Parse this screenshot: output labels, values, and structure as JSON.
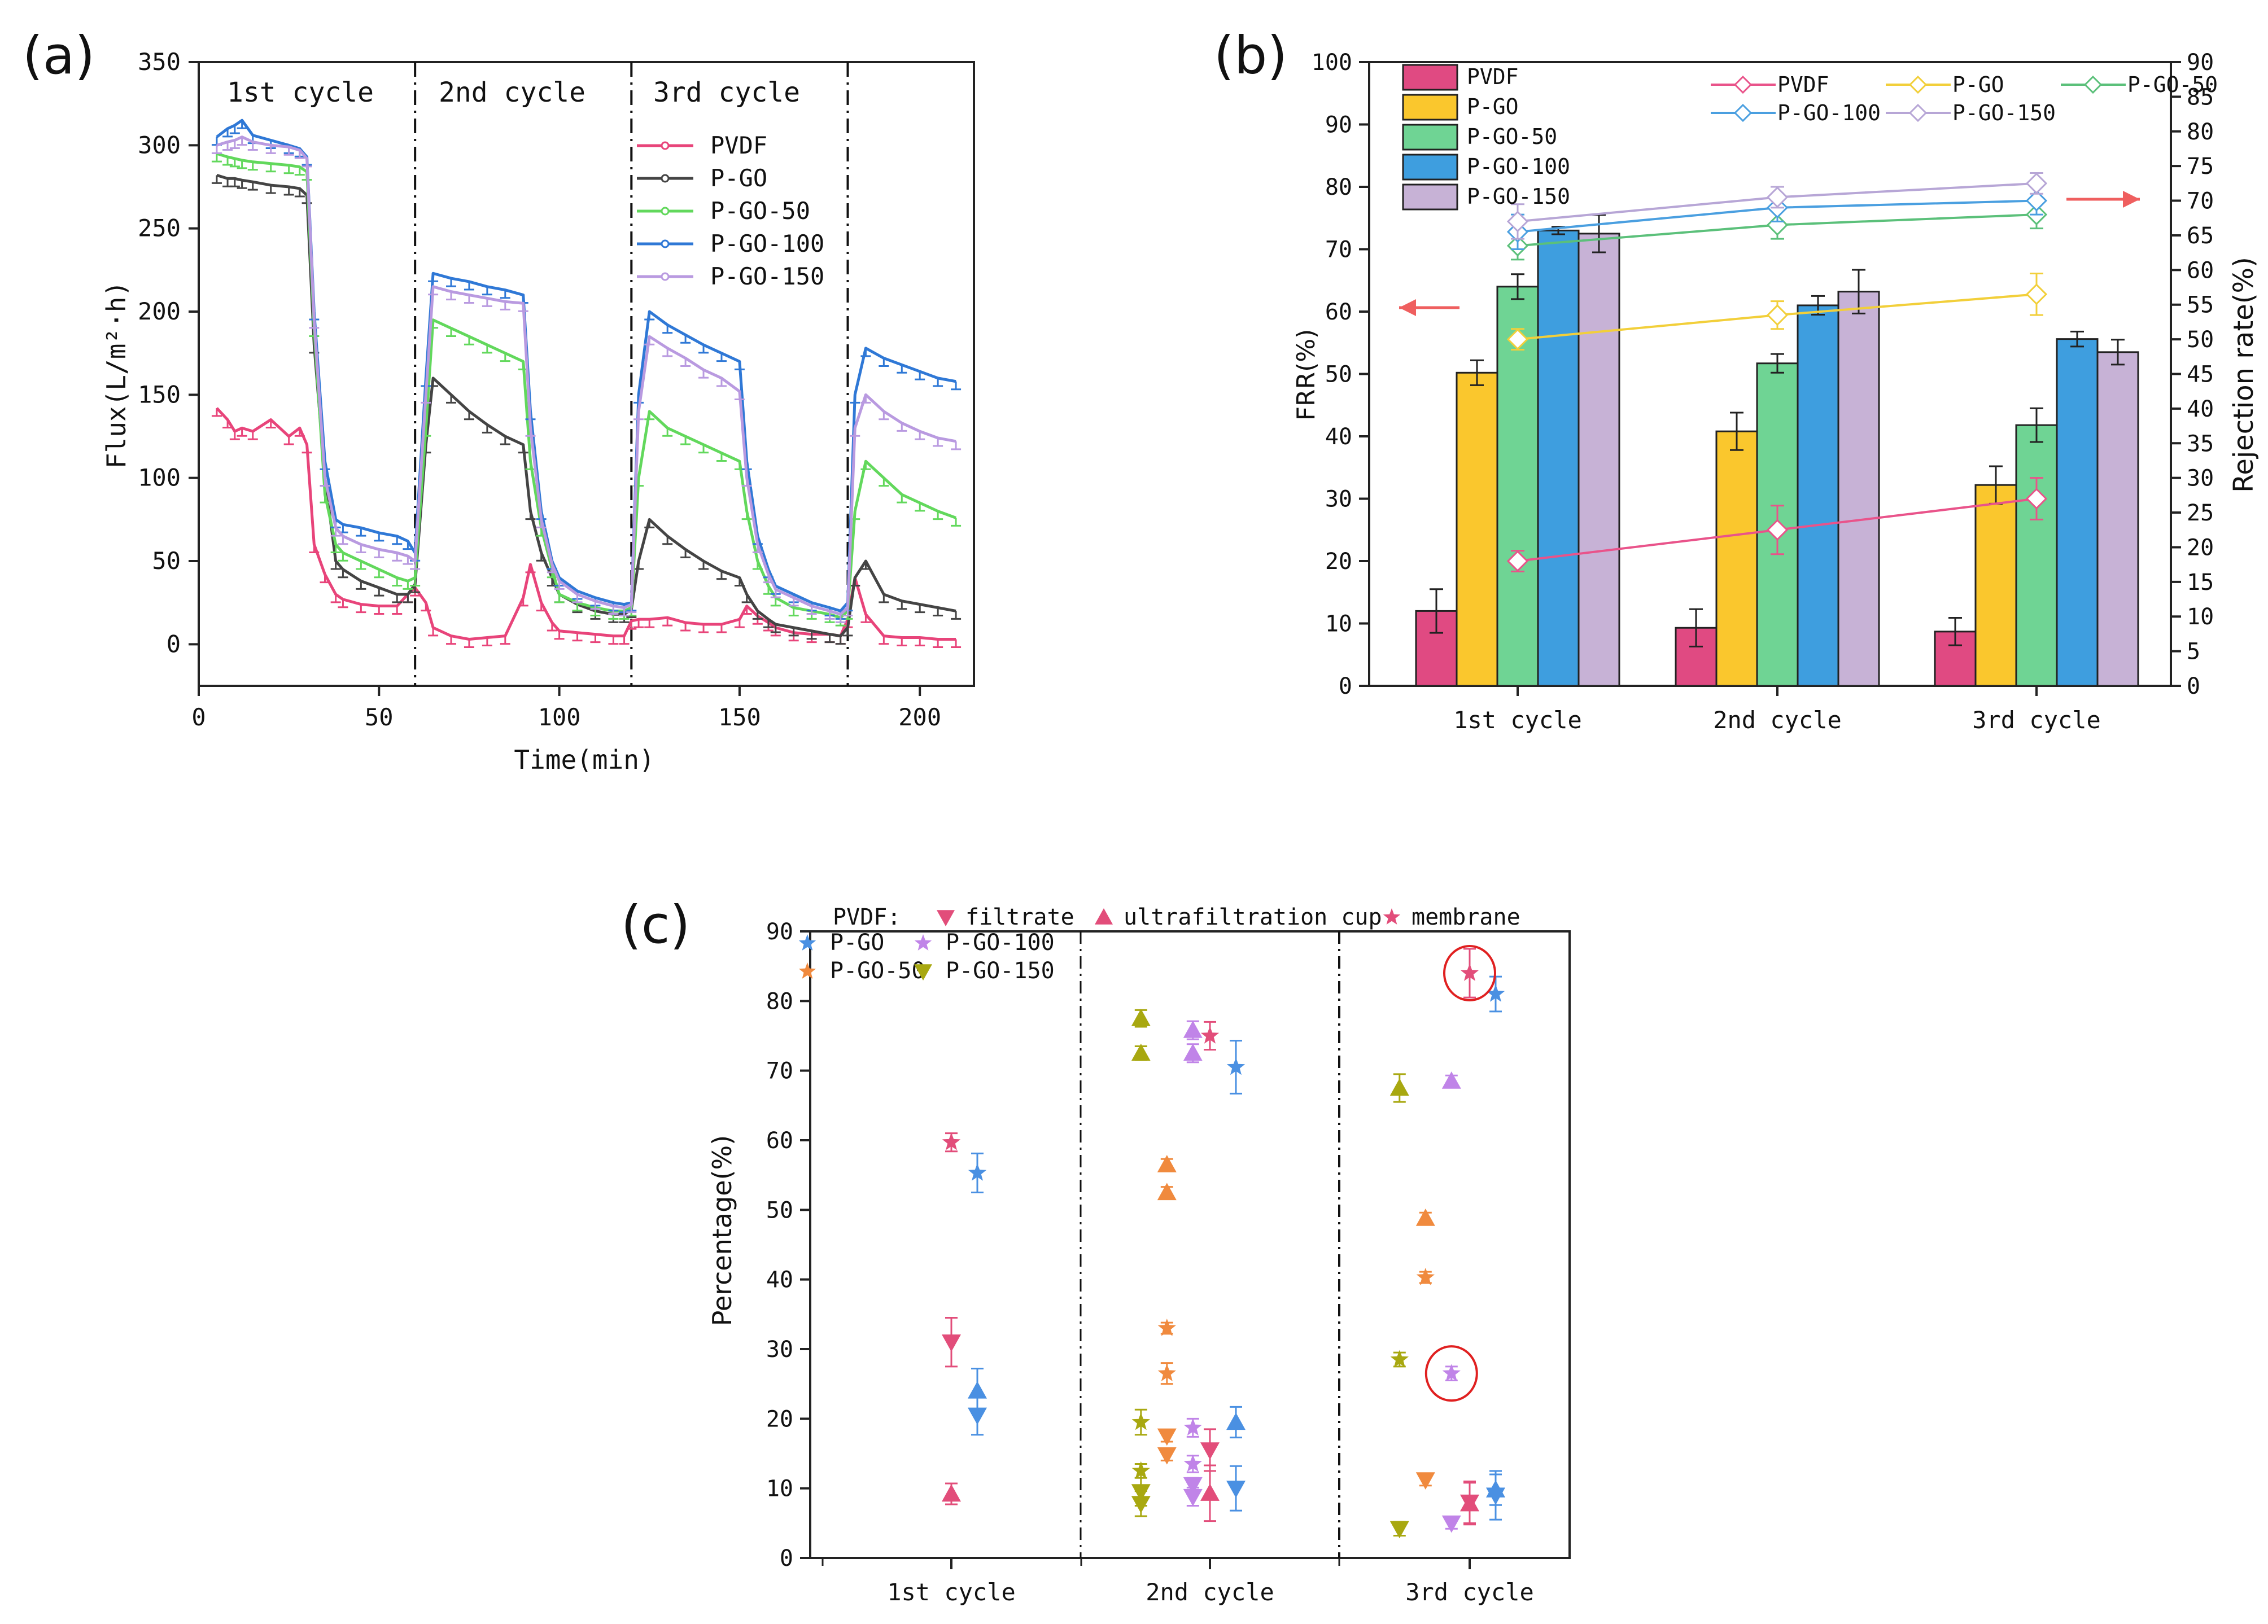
{
  "figure": {
    "panel_labels": [
      "(a)",
      "(b)",
      "(c)"
    ]
  },
  "colors": {
    "PVDF": "#e8447a",
    "P-GO": "#444444",
    "P-GO-50": "#62d85c",
    "P-GO-100": "#2f78d6",
    "P-GO-150": "#b99ae0",
    "bar_PVDF": "#e04a82",
    "bar_P-GO": "#fac72d",
    "bar_P-GO-50": "#6fd494",
    "bar_P-GO-100": "#3e9edf",
    "bar_P-GO-150": "#c7b2d6",
    "rej_PVDF": "#e9538a",
    "rej_P-GO": "#f2cf3a",
    "rej_P-GO-50": "#5bc07a",
    "rej_P-GO-100": "#4a9fe0",
    "rej_P-GO-150": "#b7a6d6",
    "c_P-GO": "#4a90e2",
    "c_P-GO-50": "#f08a3e",
    "c_P-GO-100": "#c084e8",
    "c_P-GO-150": "#a8a810",
    "c_PVDF": "#e24d7a",
    "circle": "#e02020",
    "arrow": "#ef5f5f"
  },
  "chart_data": [
    {
      "panel": "(a)",
      "type": "line",
      "xlabel": "Time(min)",
      "ylabel": "Flux(L/m²·h)",
      "xlim": [
        0,
        215
      ],
      "ylim": [
        -25,
        350
      ],
      "xticks": [
        0,
        50,
        100,
        150,
        200
      ],
      "yticks": [
        0,
        50,
        100,
        150,
        200,
        250,
        300,
        350
      ],
      "cycle_lines": [
        60,
        120,
        180
      ],
      "cycle_labels": [
        "1st cycle",
        "2nd cycle",
        "3rd cycle"
      ],
      "x": [
        5,
        8,
        10,
        12,
        15,
        20,
        25,
        28,
        30,
        32,
        35,
        38,
        40,
        45,
        50,
        55,
        58,
        60,
        63,
        65,
        70,
        75,
        80,
        85,
        90,
        92,
        95,
        98,
        100,
        105,
        110,
        115,
        118,
        120,
        122,
        125,
        130,
        135,
        140,
        145,
        150,
        152,
        155,
        158,
        160,
        165,
        170,
        175,
        178,
        180,
        182,
        185,
        190,
        195,
        200,
        205,
        210
      ],
      "series": [
        {
          "name": "PVDF",
          "values": [
            142,
            135,
            128,
            130,
            128,
            135,
            125,
            130,
            120,
            60,
            42,
            30,
            27,
            24,
            23,
            23,
            30,
            34,
            25,
            10,
            5,
            3,
            4,
            5,
            28,
            48,
            25,
            13,
            8,
            7,
            6,
            5,
            5,
            14,
            15,
            15,
            16,
            13,
            12,
            12,
            15,
            23,
            17,
            13,
            10,
            7,
            6,
            6,
            5,
            15,
            40,
            18,
            5,
            4,
            4,
            3,
            3
          ]
        },
        {
          "name": "P-GO",
          "values": [
            282,
            280,
            280,
            279,
            278,
            276,
            275,
            274,
            270,
            180,
            100,
            50,
            45,
            38,
            34,
            30,
            30,
            36,
            120,
            160,
            150,
            140,
            132,
            125,
            120,
            80,
            55,
            40,
            30,
            24,
            20,
            18,
            18,
            21,
            50,
            75,
            65,
            57,
            50,
            44,
            40,
            30,
            20,
            15,
            12,
            10,
            8,
            6,
            5,
            10,
            40,
            50,
            30,
            26,
            24,
            22,
            20
          ]
        },
        {
          "name": "P-GO-50",
          "values": [
            295,
            293,
            292,
            291,
            290,
            289,
            288,
            287,
            284,
            190,
            90,
            60,
            55,
            50,
            45,
            40,
            38,
            40,
            130,
            195,
            190,
            185,
            180,
            175,
            170,
            110,
            70,
            45,
            30,
            25,
            22,
            20,
            20,
            22,
            100,
            140,
            130,
            125,
            120,
            115,
            110,
            80,
            50,
            35,
            28,
            22,
            20,
            18,
            16,
            20,
            80,
            110,
            100,
            90,
            85,
            80,
            76
          ]
        },
        {
          "name": "P-GO-100",
          "values": [
            305,
            310,
            312,
            315,
            306,
            303,
            300,
            298,
            293,
            200,
            110,
            75,
            72,
            70,
            67,
            65,
            62,
            55,
            160,
            223,
            220,
            218,
            215,
            213,
            210,
            140,
            80,
            50,
            40,
            32,
            28,
            25,
            24,
            25,
            150,
            200,
            192,
            186,
            180,
            175,
            170,
            110,
            65,
            45,
            35,
            30,
            25,
            22,
            20,
            25,
            150,
            178,
            172,
            168,
            164,
            160,
            158
          ]
        },
        {
          "name": "P-GO-150",
          "values": [
            300,
            302,
            303,
            305,
            302,
            300,
            299,
            297,
            292,
            195,
            100,
            70,
            65,
            60,
            57,
            55,
            53,
            50,
            150,
            215,
            212,
            210,
            208,
            206,
            205,
            130,
            75,
            48,
            38,
            30,
            26,
            23,
            22,
            24,
            140,
            185,
            178,
            172,
            165,
            160,
            152,
            100,
            60,
            42,
            33,
            28,
            23,
            20,
            18,
            22,
            130,
            150,
            140,
            133,
            128,
            124,
            122
          ]
        }
      ],
      "legend": [
        "PVDF",
        "P-GO",
        "P-GO-50",
        "P-GO-100",
        "P-GO-150"
      ]
    },
    {
      "panel": "(b)",
      "type": "bar",
      "categories": [
        "1st cycle",
        "2nd cycle",
        "3rd cycle"
      ],
      "ylabel": "FRR(%)",
      "y2label": "Rejection rate(%)",
      "ylim": [
        0,
        100
      ],
      "y2lim": [
        0,
        90
      ],
      "yticks": [
        0,
        10,
        20,
        30,
        40,
        50,
        60,
        70,
        80,
        90,
        100
      ],
      "y2ticks": [
        0,
        5,
        10,
        15,
        20,
        25,
        30,
        35,
        40,
        45,
        50,
        55,
        60,
        65,
        70,
        75,
        80,
        85,
        90
      ],
      "series": [
        {
          "name": "PVDF",
          "values": [
            12,
            9.3,
            8.7
          ],
          "errors": [
            3.5,
            3,
            2.2
          ]
        },
        {
          "name": "P-GO",
          "values": [
            50.2,
            40.8,
            32.2
          ],
          "errors": [
            2,
            3,
            3
          ]
        },
        {
          "name": "P-GO-50",
          "values": [
            64,
            51.7,
            41.8
          ],
          "errors": [
            2,
            1.5,
            2.7
          ]
        },
        {
          "name": "P-GO-100",
          "values": [
            73,
            61,
            55.6
          ],
          "errors": [
            0.6,
            1.5,
            1.2
          ]
        },
        {
          "name": "P-GO-150",
          "values": [
            72.5,
            63.2,
            53.5
          ],
          "errors": [
            3,
            3.5,
            2
          ]
        }
      ],
      "rejection_series": [
        {
          "name": "PVDF",
          "values": [
            18,
            22.5,
            27
          ],
          "errors": [
            1.5,
            3.5,
            3
          ]
        },
        {
          "name": "P-GO",
          "values": [
            50,
            53.5,
            56.5
          ],
          "errors": [
            1.5,
            2,
            3
          ]
        },
        {
          "name": "P-GO-50",
          "values": [
            63.5,
            66.5,
            68
          ],
          "errors": [
            2,
            2,
            2
          ]
        },
        {
          "name": "P-GO-100",
          "values": [
            65.5,
            69,
            70
          ],
          "errors": [
            2.5,
            2,
            2
          ]
        },
        {
          "name": "P-GO-150",
          "values": [
            67,
            70.5,
            72.5
          ],
          "errors": [
            2.5,
            1.5,
            1.5
          ]
        }
      ],
      "bar_legend": [
        "PVDF",
        "P-GO",
        "P-GO-50",
        "P-GO-100",
        "P-GO-150"
      ],
      "line_legend": [
        "PVDF",
        "P-GO",
        "P-GO-50",
        "P-GO-100",
        "P-GO-150"
      ]
    },
    {
      "panel": "(c)",
      "type": "scatter",
      "ylabel": "Percentage(%)",
      "categories": [
        "1st cycle",
        "2nd cycle",
        "3rd cycle"
      ],
      "ylim": [
        0,
        90
      ],
      "yticks": [
        0,
        10,
        20,
        30,
        40,
        50,
        60,
        70,
        80,
        90
      ],
      "legend_title": "PVDF:",
      "legend_markers": [
        "filtrate",
        "ultrafiltration cup",
        "membrane"
      ],
      "legend_series": [
        "P-GO",
        "P-GO-100",
        "P-GO-50",
        "P-GO-150"
      ],
      "points": [
        {
          "series": "P-GO-150",
          "marker": "ultrafiltration cup",
          "x": 0.73,
          "y": 77.5,
          "err": 1.2
        },
        {
          "series": "P-GO-150",
          "marker": "membrane",
          "x": 0.73,
          "y": 12.5,
          "err": 1
        },
        {
          "series": "P-GO-150",
          "marker": "filtrate",
          "x": 0.73,
          "y": 9.5,
          "err": 2
        },
        {
          "series": "P-GO-50",
          "marker": "ultrafiltration cup",
          "x": 0.83,
          "y": 56.5,
          "err": 0.8
        },
        {
          "series": "P-GO-50",
          "marker": "membrane",
          "x": 0.83,
          "y": 26.5,
          "err": 1.5
        },
        {
          "series": "P-GO-50",
          "marker": "filtrate",
          "x": 0.83,
          "y": 17.5,
          "err": 0.8
        },
        {
          "series": "P-GO-100",
          "marker": "ultrafiltration cup",
          "x": 0.93,
          "y": 75.8,
          "err": 1.3
        },
        {
          "series": "P-GO-100",
          "marker": "membrane",
          "x": 0.93,
          "y": 13.5,
          "err": 1.2
        },
        {
          "series": "P-GO-100",
          "marker": "filtrate",
          "x": 0.93,
          "y": 10.5,
          "err": 1
        },
        {
          "series": "PVDF",
          "marker": "membrane",
          "x": 1.0,
          "y": 59.7,
          "err": 1.3
        },
        {
          "series": "PVDF",
          "marker": "filtrate",
          "x": 1.0,
          "y": 31,
          "err": 3.5
        },
        {
          "series": "PVDF",
          "marker": "ultrafiltration cup",
          "x": 1.0,
          "y": 9.2,
          "err": 1.5
        },
        {
          "series": "P-GO",
          "marker": "membrane",
          "x": 1.1,
          "y": 55.3,
          "err": 2.8
        },
        {
          "series": "P-GO",
          "marker": "ultrafiltration cup",
          "x": 1.1,
          "y": 24,
          "err": 3.2
        },
        {
          "series": "P-GO",
          "marker": "filtrate",
          "x": 1.1,
          "y": 20.5,
          "err": 2.8
        },
        {
          "series": "P-GO-150",
          "marker": "ultrafiltration cup",
          "x": 1.73,
          "y": 72.5,
          "err": 1
        },
        {
          "series": "P-GO-150",
          "marker": "membrane",
          "x": 1.73,
          "y": 19.5,
          "err": 1.8
        },
        {
          "series": "P-GO-150",
          "marker": "filtrate",
          "x": 1.73,
          "y": 7.8,
          "err": 1.8
        },
        {
          "series": "P-GO-50",
          "marker": "ultrafiltration cup",
          "x": 1.83,
          "y": 52.5,
          "err": 0.8
        },
        {
          "series": "P-GO-50",
          "marker": "membrane",
          "x": 1.83,
          "y": 33,
          "err": 0.8
        },
        {
          "series": "P-GO-50",
          "marker": "filtrate",
          "x": 1.83,
          "y": 14.8,
          "err": 0.8
        },
        {
          "series": "P-GO-100",
          "marker": "ultrafiltration cup",
          "x": 1.93,
          "y": 72.5,
          "err": 1.3
        },
        {
          "series": "P-GO-100",
          "marker": "membrane",
          "x": 1.93,
          "y": 18.7,
          "err": 1.3
        },
        {
          "series": "P-GO-100",
          "marker": "filtrate",
          "x": 1.93,
          "y": 8.8,
          "err": 1.3
        },
        {
          "series": "PVDF",
          "marker": "membrane",
          "x": 2.0,
          "y": 75,
          "err": 2
        },
        {
          "series": "PVDF",
          "marker": "filtrate",
          "x": 2.0,
          "y": 15.5,
          "err": 3
        },
        {
          "series": "PVDF",
          "marker": "ultrafiltration cup",
          "x": 2.0,
          "y": 9.3,
          "err": 4
        },
        {
          "series": "P-GO",
          "marker": "membrane",
          "x": 2.1,
          "y": 70.5,
          "err": 3.8
        },
        {
          "series": "P-GO",
          "marker": "ultrafiltration cup",
          "x": 2.1,
          "y": 19.5,
          "err": 2.2
        },
        {
          "series": "P-GO",
          "marker": "filtrate",
          "x": 2.1,
          "y": 10,
          "err": 3.2
        },
        {
          "series": "P-GO-150",
          "marker": "ultrafiltration cup",
          "x": 2.73,
          "y": 67.5,
          "err": 2
        },
        {
          "series": "P-GO-150",
          "marker": "membrane",
          "x": 2.73,
          "y": 28.5,
          "err": 1
        },
        {
          "series": "P-GO-150",
          "marker": "filtrate",
          "x": 2.73,
          "y": 4.2,
          "err": 1
        },
        {
          "series": "P-GO-50",
          "marker": "ultrafiltration cup",
          "x": 2.83,
          "y": 48.8,
          "err": 0.8
        },
        {
          "series": "P-GO-50",
          "marker": "membrane",
          "x": 2.83,
          "y": 40.3,
          "err": 0.8
        },
        {
          "series": "P-GO-50",
          "marker": "filtrate",
          "x": 2.83,
          "y": 11.2,
          "err": 0.8
        },
        {
          "series": "P-GO-100",
          "marker": "ultrafiltration cup",
          "x": 2.93,
          "y": 68.5,
          "err": 0.8
        },
        {
          "series": "P-GO-100",
          "marker": "membrane",
          "x": 2.93,
          "y": 26.5,
          "err": 1
        },
        {
          "series": "P-GO-100",
          "marker": "filtrate",
          "x": 2.93,
          "y": 5,
          "err": 0.8
        },
        {
          "series": "PVDF",
          "marker": "membrane",
          "x": 3.0,
          "y": 84,
          "err": 3.5
        },
        {
          "series": "PVDF",
          "marker": "filtrate",
          "x": 3.0,
          "y": 8,
          "err": 3
        },
        {
          "series": "PVDF",
          "marker": "ultrafiltration cup",
          "x": 3.0,
          "y": 7.8,
          "err": 3
        },
        {
          "series": "P-GO",
          "marker": "membrane",
          "x": 3.1,
          "y": 81,
          "err": 2.5
        },
        {
          "series": "P-GO",
          "marker": "ultrafiltration cup",
          "x": 3.1,
          "y": 9.8,
          "err": 2.2
        },
        {
          "series": "P-GO",
          "marker": "filtrate",
          "x": 3.1,
          "y": 9,
          "err": 3.5
        }
      ],
      "highlight_circles": [
        {
          "x": 3.0,
          "y": 84
        },
        {
          "x": 2.93,
          "y": 26.5
        }
      ]
    }
  ]
}
